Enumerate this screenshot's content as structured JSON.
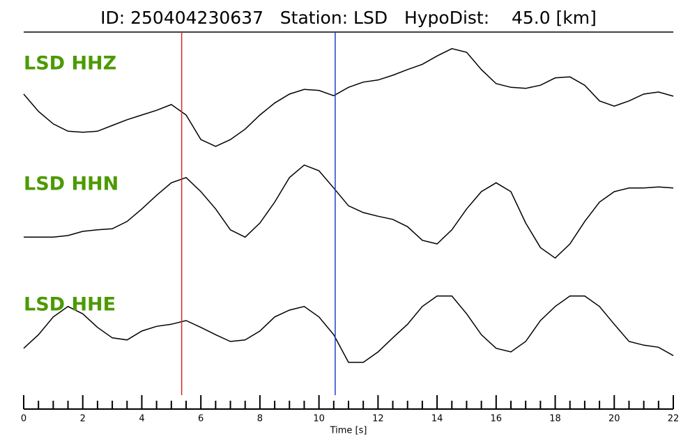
{
  "chart_data": {
    "type": "line",
    "title": "ID: 250404230637   Station: LSD   HypoDist:    45.0 [km]",
    "xlabel": "Time [s]",
    "xlim": [
      0,
      22
    ],
    "xticks": [
      0,
      2,
      4,
      6,
      8,
      10,
      12,
      14,
      16,
      18,
      20,
      22
    ],
    "xminorticks": [
      0.5,
      1,
      1.5,
      2.5,
      3,
      3.5,
      4.5,
      5,
      5.5,
      6.5,
      7,
      7.5,
      8.5,
      9,
      9.5,
      10.5,
      11,
      11.5,
      12.5,
      13,
      13.5,
      14.5,
      15,
      15.5,
      16.5,
      17,
      17.5,
      18.5,
      19,
      19.5,
      20.5,
      21,
      21.5
    ],
    "ylim": [
      -1.2,
      1.2
    ],
    "x": [
      0,
      0.5,
      1,
      1.5,
      2,
      2.5,
      3,
      3.5,
      4,
      4.5,
      5,
      5.5,
      6,
      6.5,
      7,
      7.5,
      8,
      8.5,
      9,
      9.5,
      10,
      10.5,
      11,
      11.5,
      12,
      12.5,
      13,
      13.5,
      14,
      14.5,
      15,
      15.5,
      16,
      16.5,
      17,
      17.5,
      18,
      18.5,
      19,
      19.5,
      20,
      20.5,
      21,
      21.5,
      22
    ],
    "label_color": "#4c9a00",
    "series": [
      {
        "name": "LSD HHZ",
        "color": "#000000",
        "values": [
          0.2,
          -0.13,
          -0.37,
          -0.51,
          -0.53,
          -0.51,
          -0.4,
          -0.29,
          -0.2,
          -0.11,
          0,
          -0.2,
          -0.67,
          -0.8,
          -0.67,
          -0.47,
          -0.2,
          0.03,
          0.2,
          0.29,
          0.27,
          0.17,
          0.33,
          0.43,
          0.47,
          0.56,
          0.67,
          0.77,
          0.93,
          1.07,
          1,
          0.67,
          0.4,
          0.33,
          0.31,
          0.37,
          0.51,
          0.53,
          0.37,
          0.07,
          -0.03,
          0.07,
          0.2,
          0.24,
          0.16
        ]
      },
      {
        "name": "LSD HHN",
        "color": "#000000",
        "values": [
          -0.67,
          -0.67,
          -0.67,
          -0.64,
          -0.56,
          -0.53,
          -0.51,
          -0.37,
          -0.13,
          0.13,
          0.37,
          0.47,
          0.2,
          -0.13,
          -0.53,
          -0.67,
          -0.4,
          0,
          0.47,
          0.71,
          0.6,
          0.27,
          -0.07,
          -0.2,
          -0.27,
          -0.33,
          -0.47,
          -0.73,
          -0.8,
          -0.53,
          -0.13,
          0.2,
          0.37,
          0.2,
          -0.4,
          -0.87,
          -1.07,
          -0.8,
          -0.37,
          0,
          0.2,
          0.27,
          0.27,
          0.29,
          0.27
        ]
      },
      {
        "name": "LSD HHE",
        "color": "#000000",
        "values": [
          -0.33,
          -0.07,
          0.27,
          0.47,
          0.33,
          0.07,
          -0.13,
          -0.17,
          0,
          0.09,
          0.13,
          0.2,
          0.07,
          -0.07,
          -0.2,
          -0.17,
          0,
          0.27,
          0.4,
          0.47,
          0.27,
          -0.07,
          -0.6,
          -0.6,
          -0.4,
          -0.13,
          0.13,
          0.47,
          0.67,
          0.67,
          0.33,
          -0.07,
          -0.33,
          -0.4,
          -0.2,
          0.2,
          0.47,
          0.67,
          0.67,
          0.47,
          0.13,
          -0.2,
          -0.27,
          -0.31,
          -0.47
        ]
      }
    ],
    "vlines": [
      {
        "value": 5.35,
        "color": "#d62728"
      },
      {
        "value": 10.55,
        "color": "#1f3fcc"
      }
    ]
  }
}
